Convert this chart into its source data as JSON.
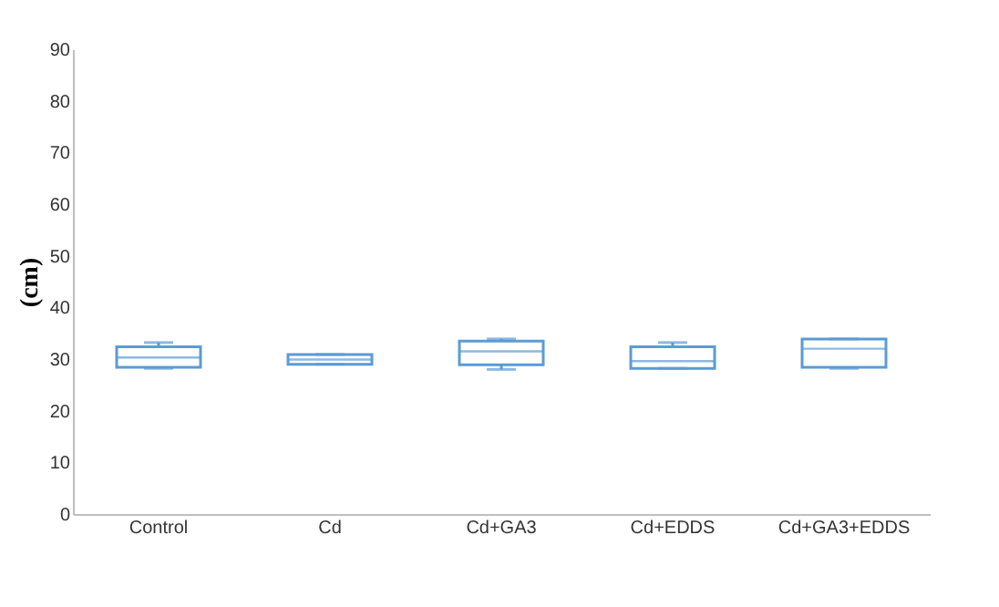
{
  "chart_data": {
    "type": "box",
    "ylabel": "(cm)",
    "categories": [
      "Control",
      "Cd",
      "Cd+GA3",
      "Cd+EDDS",
      "Cd+GA3+EDDS"
    ],
    "boxes": [
      {
        "low": 28.2,
        "q1": 28.4,
        "median": 30.3,
        "q3": 32.4,
        "high": 33.2
      },
      {
        "low": 29.0,
        "q1": 29.0,
        "median": 29.9,
        "q3": 30.9,
        "high": 30.9
      },
      {
        "low": 28.0,
        "q1": 28.9,
        "median": 31.5,
        "q3": 33.5,
        "high": 33.9
      },
      {
        "low": 28.2,
        "q1": 28.2,
        "median": 29.6,
        "q3": 32.4,
        "high": 33.2
      },
      {
        "low": 28.2,
        "q1": 28.4,
        "median": 32.0,
        "q3": 33.9,
        "high": 33.9
      }
    ],
    "color": "#5b9bd5",
    "ylim": [
      0,
      90
    ],
    "yticks": [
      0,
      10,
      20,
      30,
      40,
      50,
      60,
      70,
      80,
      90
    ],
    "grid": false
  }
}
